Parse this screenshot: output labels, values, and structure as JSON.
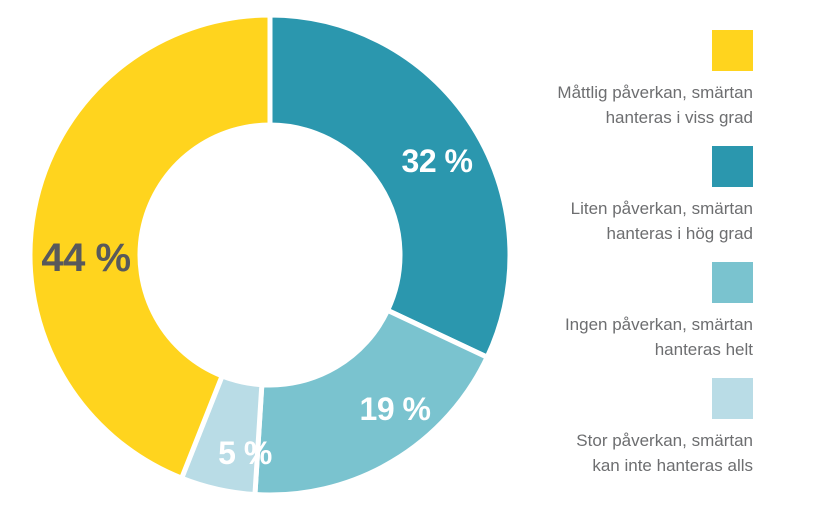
{
  "background_color": "#ffffff",
  "chart_data": {
    "type": "pie",
    "variant": "donut",
    "title": "",
    "unit": "%",
    "direction": "clockwise",
    "start_angle_deg": 0,
    "total": 100,
    "segments": [
      {
        "name": "Liten påverkan, smärtan hanteras i hög grad",
        "value": 32,
        "display": "32 %",
        "color": "#2b97ae",
        "label_color": "#ffffff"
      },
      {
        "name": "Ingen påverkan, smärtan hanteras helt",
        "value": 19,
        "display": "19 %",
        "color": "#7ac3cf",
        "label_color": "#ffffff"
      },
      {
        "name": "Stor påverkan, smärtan kan inte hanteras alls",
        "value": 5,
        "display": "5 %",
        "color": "#b9dce6",
        "label_color": "#ffffff"
      },
      {
        "name": "Måttlig påverkan, smärtan hanteras i viss grad",
        "value": 44,
        "display": "44 %",
        "color": "#ffd41e",
        "label_color": "#58595b"
      }
    ],
    "legend": {
      "position": "right",
      "items": [
        {
          "lines": [
            "Måttlig påverkan, smärtan",
            "hanteras i viss grad"
          ],
          "color": "#ffd41e"
        },
        {
          "lines": [
            "Liten påverkan, smärtan",
            "hanteras i hög grad"
          ],
          "color": "#2b97ae"
        },
        {
          "lines": [
            "Ingen påverkan, smärtan",
            "hanteras helt"
          ],
          "color": "#7ac3cf"
        },
        {
          "lines": [
            "Stor påverkan, smärtan",
            "kan inte hanteras alls"
          ],
          "color": "#b9dce6"
        }
      ]
    }
  }
}
